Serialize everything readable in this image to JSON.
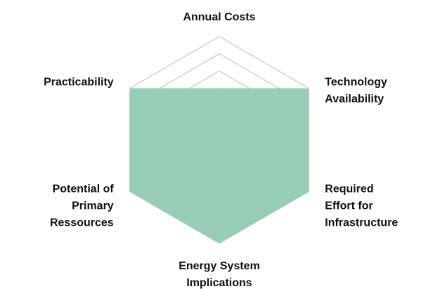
{
  "chart_data": {
    "type": "radar",
    "categories": [
      [
        "Annual Costs"
      ],
      [
        "Technology",
        "Availability"
      ],
      [
        "Required",
        "Effort for",
        "Infrastructure"
      ],
      [
        "Energy System",
        "Implications"
      ],
      [
        "Potential of",
        "Primary",
        "Ressources"
      ],
      [
        "Practicability"
      ]
    ],
    "values": [
      3,
      6,
      6,
      6,
      6,
      6
    ],
    "color": "#96cdb4",
    "rlim": [
      0,
      6
    ],
    "rticks": [
      1,
      2,
      3,
      4,
      5,
      6
    ],
    "grid": true
  }
}
